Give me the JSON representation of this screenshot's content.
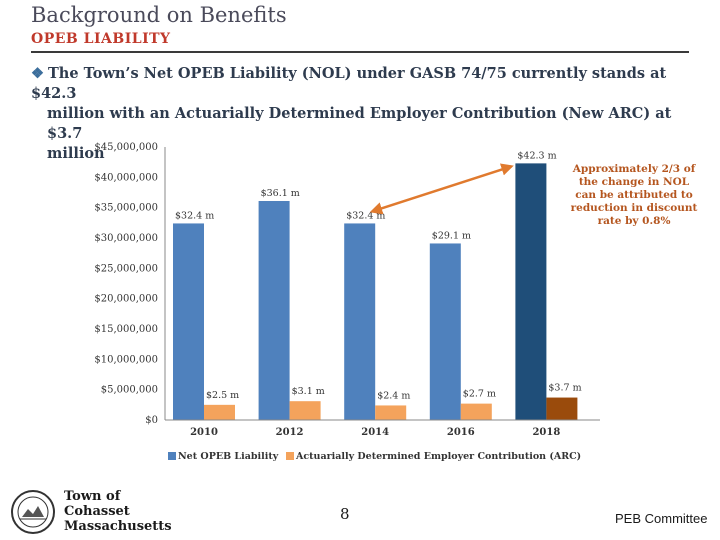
{
  "header": {
    "title": "Background on Benefits",
    "subtitle": "OPEB LIABILITY",
    "bullet_line1": "The Town’s Net OPEB Liability (NOL) under GASB 74/75 currently stands at $42.3",
    "bullet_line2": "million with an Actuarially Determined Employer Contribution (New ARC) at  $3.7",
    "bullet_line3": "million"
  },
  "callout": {
    "text": "Approximately 2/3 of the change in NOL can be attributed to reduction in discount rate by 0.8%"
  },
  "footer": {
    "town_line1": "Town of",
    "town_line2": "Cohasset",
    "town_line3": "Massachusetts",
    "page_number": "8",
    "right_text": "PEB Committee"
  },
  "colors": {
    "nol": "#4f81bd",
    "nol_highlight": "#1f4e79",
    "arc": "#f4a35c",
    "arc_highlight": "#9a4b0c",
    "arrow": "#e07a2e",
    "callout_text": "#b5561f"
  },
  "chart_data": {
    "type": "bar",
    "categories": [
      "2010",
      "2012",
      "2014",
      "2016",
      "2018"
    ],
    "series": [
      {
        "name": "Net OPEB Liability",
        "values": [
          32400000,
          36100000,
          32400000,
          29100000,
          42300000
        ],
        "labels": [
          "$32.4 m",
          "$36.1 m",
          "$32.4 m",
          "$29.1 m",
          "$42.3 m"
        ]
      },
      {
        "name": "Actuarially Determined Employer Contribution (ARC)",
        "values": [
          2500000,
          3100000,
          2400000,
          2700000,
          3700000
        ],
        "labels": [
          "$2.5 m",
          "$3.1 m",
          "$2.4 m",
          "$2.7 m",
          "$3.7 m"
        ]
      }
    ],
    "ylim": [
      0,
      45000000
    ],
    "yticks": [
      0,
      5000000,
      10000000,
      15000000,
      20000000,
      25000000,
      30000000,
      35000000,
      40000000,
      45000000
    ],
    "ytick_labels": [
      "$0",
      "$5,000,000",
      "$10,000,000",
      "$15,000,000",
      "$20,000,000",
      "$25,000,000",
      "$30,000,000",
      "$35,000,000",
      "$40,000,000",
      "$45,000,000"
    ],
    "legend_position": "bottom",
    "grid": false
  }
}
